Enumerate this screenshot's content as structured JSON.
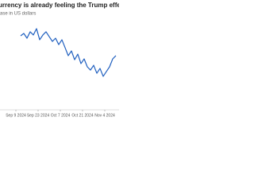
{
  "chart_data": {
    "type": "line",
    "title": "urrency is already feeling the Trump effect",
    "subtitle": "ase in US dollars",
    "x": [
      "2024-09-12",
      "2024-09-14",
      "2024-09-16",
      "2024-09-18",
      "2024-09-20",
      "2024-09-22",
      "2024-09-24",
      "2024-09-26",
      "2024-09-28",
      "2024-09-30",
      "2024-10-02",
      "2024-10-04",
      "2024-10-06",
      "2024-10-08",
      "2024-10-10",
      "2024-10-12",
      "2024-10-14",
      "2024-10-16",
      "2024-10-18",
      "2024-10-20",
      "2024-10-22",
      "2024-10-24",
      "2024-10-26",
      "2024-10-28",
      "2024-10-30",
      "2024-11-01",
      "2024-11-03",
      "2024-11-05",
      "2024-11-07",
      "2024-11-09",
      "2024-11-11"
    ],
    "series": [
      {
        "color": "#1f5fbf",
        "values": [
          82.6,
          85.2,
          80,
          87,
          83.5,
          90.4,
          78.3,
          83.5,
          87,
          81.7,
          76.5,
          80,
          73,
          78.3,
          69.6,
          60.9,
          66.1,
          56.5,
          62.6,
          52.2,
          57.4,
          48.7,
          45.2,
          50.4,
          41.7,
          47,
          38.3,
          43.5,
          48.7,
          57.4,
          60.9
        ]
      }
    ],
    "xlim": [
      "2024-08-30",
      "2024-11-13"
    ],
    "xticks": [
      {
        "value": "2024-09-09",
        "label": "Sep 9 2024"
      },
      {
        "value": "2024-09-23",
        "label": "Sep 23 2024"
      },
      {
        "value": "2024-10-07",
        "label": "Oct 7 2024"
      },
      {
        "value": "2024-10-21",
        "label": "Oct 21 2024"
      },
      {
        "value": "2024-11-04",
        "label": "Nov 4 2024"
      }
    ],
    "ylim": [
      0,
      100
    ]
  }
}
